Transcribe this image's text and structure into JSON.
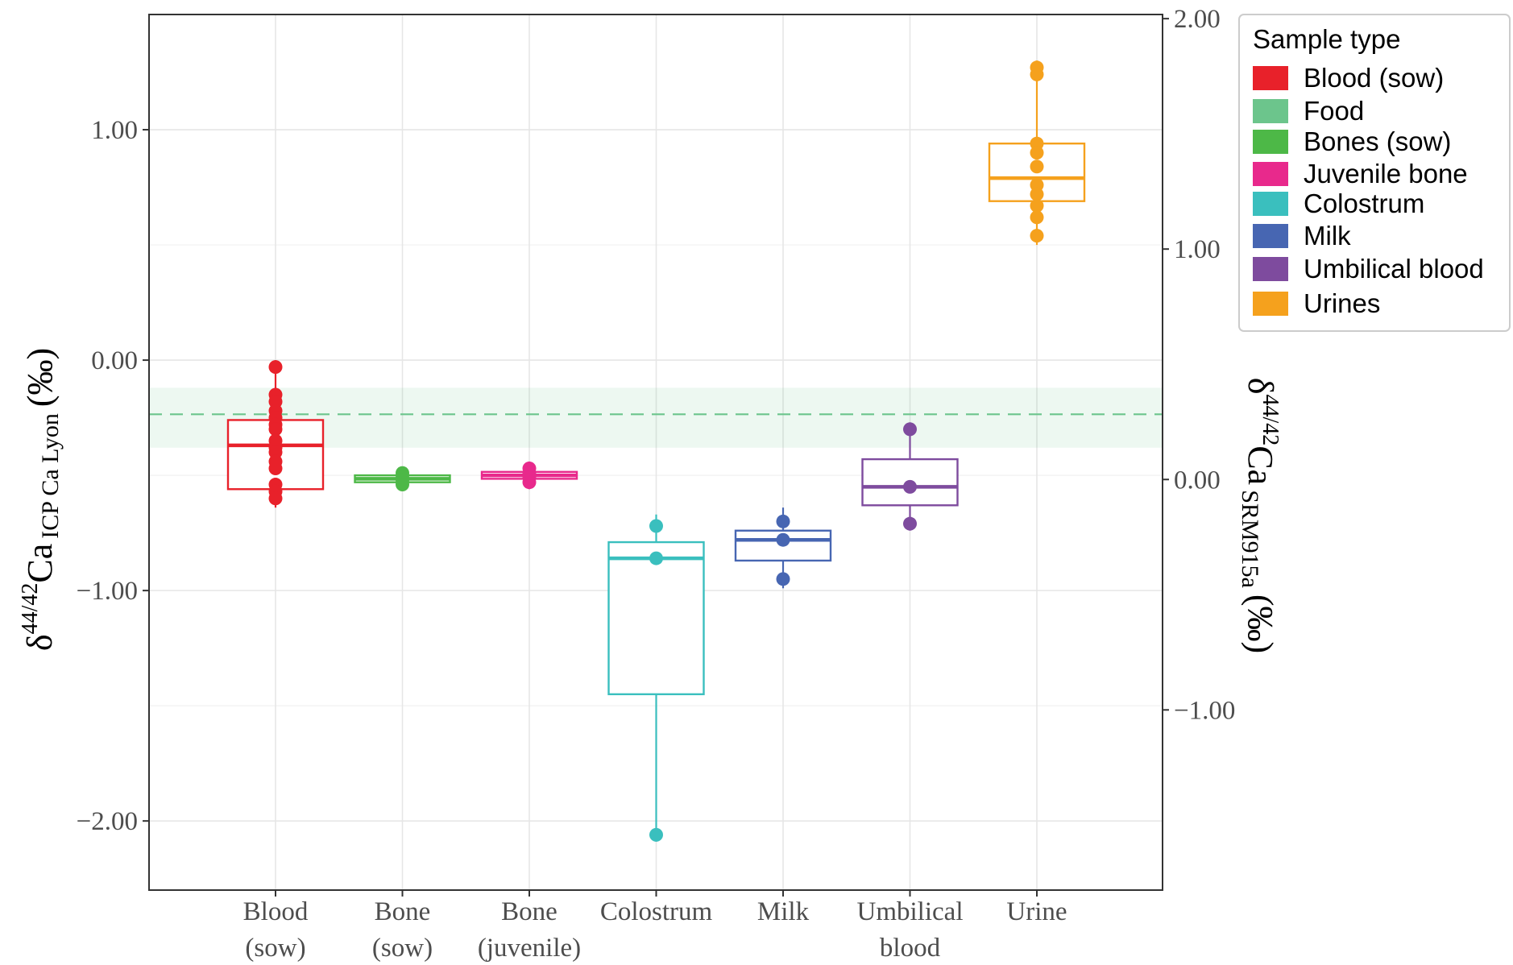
{
  "chart_data": {
    "type": "box",
    "xlabel": "",
    "ylabel_left": {
      "delta": "δ",
      "sup": "44/42",
      "main": "Ca",
      "sub": "ICP Ca Lyon",
      "unit": "(‰)"
    },
    "ylabel_right": {
      "delta": "δ",
      "sup": "44/42",
      "main": "Ca",
      "sub": "SRM915a",
      "unit": "(‰)"
    },
    "ylim_left": [
      -2.3,
      1.5
    ],
    "right_axis_offset": -0.518,
    "yticks_left": [
      {
        "value": 1.0,
        "label": "1.00"
      },
      {
        "value": 0.0,
        "label": "0.00"
      },
      {
        "value": -1.0,
        "label": "−1.00"
      },
      {
        "value": -2.0,
        "label": "−2.00"
      }
    ],
    "yticks_right": [
      {
        "value": 2.0,
        "label": "2.00"
      },
      {
        "value": 1.0,
        "label": "1.00"
      },
      {
        "value": 0.0,
        "label": "0.00"
      },
      {
        "value": -1.0,
        "label": "−1.00"
      }
    ],
    "grid": true,
    "food_reference": {
      "mean": -0.235,
      "band": [
        -0.38,
        -0.12
      ],
      "color": "#6cc58c"
    },
    "categories": [
      {
        "id": "blood",
        "line1": "Blood",
        "line2": "(sow)"
      },
      {
        "id": "bone-sow",
        "line1": "Bone",
        "line2": "(sow)"
      },
      {
        "id": "bone-juvenile",
        "line1": "Bone",
        "line2": "(juvenile)"
      },
      {
        "id": "colostrum",
        "line1": "Colostrum",
        "line2": ""
      },
      {
        "id": "milk",
        "line1": "Milk",
        "line2": ""
      },
      {
        "id": "umbilical",
        "line1": "Umbilical",
        "line2": "blood"
      },
      {
        "id": "urine",
        "line1": "Urine",
        "line2": ""
      }
    ],
    "series": [
      {
        "category": "blood",
        "color": "#e8212a",
        "min": -0.64,
        "q1": -0.56,
        "median": -0.37,
        "q3": -0.26,
        "max": 0.0,
        "points": [
          -0.03,
          -0.15,
          -0.18,
          -0.22,
          -0.25,
          -0.28,
          -0.3,
          -0.35,
          -0.38,
          -0.4,
          -0.44,
          -0.47,
          -0.54,
          -0.57,
          -0.6
        ]
      },
      {
        "category": "bone-sow",
        "color": "#4db847",
        "min": -0.55,
        "q1": -0.53,
        "median": -0.515,
        "q3": -0.5,
        "max": -0.47,
        "points": [
          -0.49,
          -0.51,
          -0.52,
          -0.54
        ]
      },
      {
        "category": "bone-juvenile",
        "color": "#e8298c",
        "min": -0.56,
        "q1": -0.515,
        "median": -0.5,
        "q3": -0.485,
        "max": -0.44,
        "points": [
          -0.47,
          -0.49,
          -0.51,
          -0.53
        ]
      },
      {
        "category": "colostrum",
        "color": "#3abfbe",
        "min": -2.09,
        "q1": -1.45,
        "median": -0.86,
        "q3": -0.79,
        "max": -0.67,
        "points": [
          -0.72,
          -0.86,
          -2.06
        ]
      },
      {
        "category": "milk",
        "color": "#4766b2",
        "min": -0.99,
        "q1": -0.87,
        "median": -0.78,
        "q3": -0.74,
        "max": -0.64,
        "points": [
          -0.7,
          -0.78,
          -0.95
        ]
      },
      {
        "category": "umbilical",
        "color": "#7e4b9e",
        "min": -0.74,
        "q1": -0.63,
        "median": -0.55,
        "q3": -0.43,
        "max": -0.27,
        "points": [
          -0.3,
          -0.55,
          -0.71
        ]
      },
      {
        "category": "urine",
        "color": "#f5a11d",
        "min": 0.5,
        "q1": 0.69,
        "median": 0.79,
        "q3": 0.94,
        "max": 1.3,
        "points": [
          1.27,
          1.24,
          0.94,
          0.9,
          0.84,
          0.76,
          0.72,
          0.67,
          0.62,
          0.54
        ]
      }
    ],
    "legend": {
      "title": "Sample type",
      "position": "top-right",
      "items": [
        {
          "label": "Blood (sow)",
          "color": "#e8212a"
        },
        {
          "label": "Food",
          "color": "#6cc58c"
        },
        {
          "label": "Bones (sow)",
          "color": "#4db847"
        },
        {
          "label": "Juvenile bone",
          "color": "#e8298c"
        },
        {
          "label": "Colostrum",
          "color": "#3abfbe"
        },
        {
          "label": "Milk",
          "color": "#4766b2"
        },
        {
          "label": "Umbilical blood",
          "color": "#7e4b9e"
        },
        {
          "label": "Urines",
          "color": "#f5a11d"
        }
      ]
    }
  }
}
